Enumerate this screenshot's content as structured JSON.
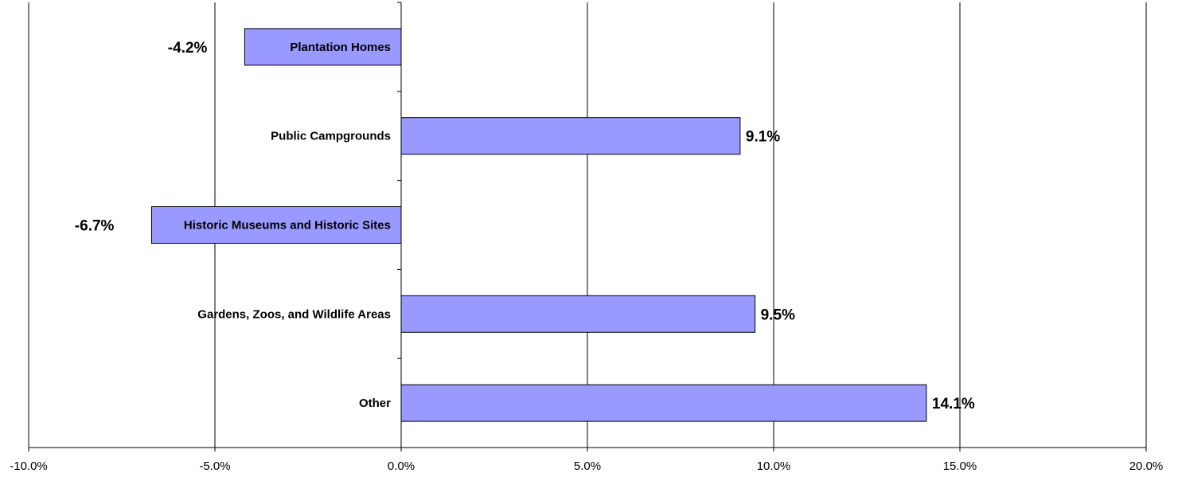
{
  "chart_data": {
    "type": "bar",
    "orientation": "horizontal",
    "categories": [
      "Plantation Homes",
      "Public Campgrounds",
      "Historic Museums and Historic Sites",
      "Gardens, Zoos, and Wildlife Areas",
      "Other"
    ],
    "values": [
      -4.2,
      9.1,
      -6.7,
      9.5,
      14.1
    ],
    "data_labels": [
      "-4.2%",
      "9.1%",
      "-6.7%",
      "9.5%",
      "14.1%"
    ],
    "xlim": [
      -10,
      20
    ],
    "x_ticks": [
      -10,
      -5,
      0,
      5,
      10,
      15,
      20
    ],
    "x_tick_labels": [
      "-10.0%",
      "-5.0%",
      "0.0%",
      "5.0%",
      "10.0%",
      "15.0%",
      "20.0%"
    ],
    "grid": "vertical",
    "legend": "none",
    "colors": {
      "bar_fill": "#9999ff",
      "bar_stroke": "#000000",
      "grid": "#000000"
    }
  }
}
